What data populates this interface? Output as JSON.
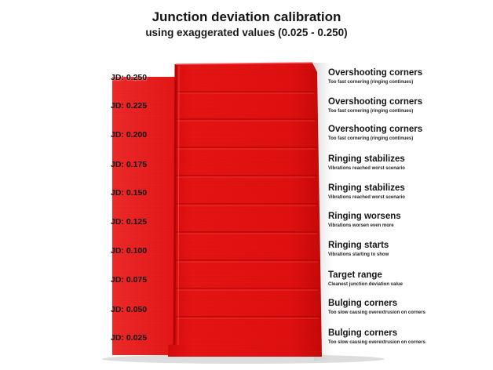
{
  "title": "Junction deviation calibration",
  "subtitle": "using exaggerated values (0.025 - 0.250)",
  "jd_labels": [
    "JD: 0.250",
    "JD: 0.225",
    "JD: 0.200",
    "JD: 0.175",
    "JD: 0.150",
    "JD: 0.125",
    "JD: 0.100",
    "JD: 0.075",
    "JD: 0.050",
    "JD: 0.025"
  ],
  "annotations": [
    {
      "heading": "Overshooting corners",
      "note": "Too fast cornering (ringing continues)"
    },
    {
      "heading": "Overshooting corners",
      "note": "Too fast cornering (ringing continues)"
    },
    {
      "heading": "Overshooting corners",
      "note": "Too fast cornering (ringing continues)"
    },
    {
      "heading": "Ringing stabilizes",
      "note": "Vibrations reached worst scenario"
    },
    {
      "heading": "Ringing stabilizes",
      "note": "Vibrations reached worst scenario"
    },
    {
      "heading": "Ringing worsens",
      "note": "Vibrations worsen even more"
    },
    {
      "heading": "Ringing starts",
      "note": "Vibrations starting to show"
    },
    {
      "heading": "Target range",
      "note": "Cleanest junction deviation value"
    },
    {
      "heading": "Bulging corners",
      "note": "Too slow causing overextrusion on corners"
    },
    {
      "heading": "Bulging corners",
      "note": "Too slow causing overextrusion on corners"
    }
  ],
  "colors": {
    "print_red": "#e51010",
    "print_dark": "#b50606",
    "print_light": "#f53232",
    "shadow": "#c9c9c9",
    "background": "#ffffff"
  }
}
